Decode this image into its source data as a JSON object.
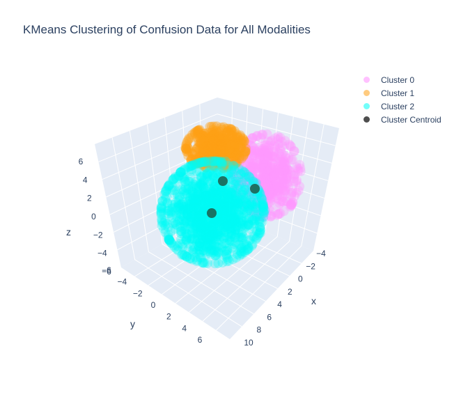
{
  "chart_data": {
    "type": "scatter",
    "title": "KMeans Clustering of Confusion Data for All Modalities",
    "axes": {
      "x": {
        "label": "x",
        "ticks": [
          "−4",
          "−2",
          "0",
          "2",
          "4",
          "6",
          "8",
          "10"
        ]
      },
      "y": {
        "label": "y",
        "ticks": [
          "−6",
          "−4",
          "−2",
          "0",
          "2",
          "4",
          "6"
        ]
      },
      "z": {
        "label": "z",
        "ticks": [
          "−6",
          "−4",
          "−2",
          "0",
          "2",
          "4",
          "6"
        ]
      }
    },
    "legend_position": "top-right",
    "series": [
      {
        "name": "Cluster 0",
        "color": "#ff97ff",
        "opacity": 0.45
      },
      {
        "name": "Cluster 1",
        "color": "#ffa015",
        "opacity": 0.45
      },
      {
        "name": "Cluster 2",
        "color": "#00fdf5",
        "opacity": 0.45
      },
      {
        "name": "Cluster Centroid",
        "color": "#1e5a4a",
        "opacity": 0.85
      }
    ]
  }
}
